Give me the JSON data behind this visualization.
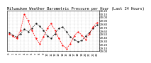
{
  "title": "Milwaukee Weather Barometric Pressure per Hour (Last 24 Hours)",
  "bg_color": "#ffffff",
  "plot_bg_color": "#ffffff",
  "grid_color": "#888888",
  "line1_color": "#000000",
  "line2_color": "#ff0000",
  "x_labels": [
    "0",
    "1",
    "2",
    "3",
    "4",
    "5",
    "6",
    "7",
    "8",
    "9",
    "10",
    "11",
    "12",
    "13",
    "14",
    "15",
    "16",
    "17",
    "18",
    "19",
    "20",
    "21",
    "22",
    "23"
  ],
  "line1_values": [
    29.55,
    29.48,
    29.42,
    29.52,
    29.65,
    29.58,
    29.68,
    29.82,
    29.75,
    29.62,
    29.45,
    29.38,
    29.52,
    29.68,
    29.72,
    29.58,
    29.42,
    29.35,
    29.28,
    29.32,
    29.45,
    29.55,
    29.68,
    29.78
  ],
  "line2_values": [
    29.52,
    29.45,
    29.38,
    29.62,
    30.1,
    29.9,
    29.62,
    29.38,
    29.22,
    29.42,
    29.68,
    29.82,
    29.62,
    29.38,
    29.18,
    29.08,
    29.22,
    29.45,
    29.58,
    29.48,
    29.35,
    29.52,
    29.72,
    29.85
  ],
  "ylim_min": 29.0,
  "ylim_max": 30.2,
  "ytick_values": [
    29.0,
    29.1,
    29.2,
    29.3,
    29.4,
    29.5,
    29.6,
    29.7,
    29.8,
    29.9,
    30.0,
    30.1,
    30.2
  ],
  "title_fontsize": 3.8,
  "tick_fontsize": 2.8
}
